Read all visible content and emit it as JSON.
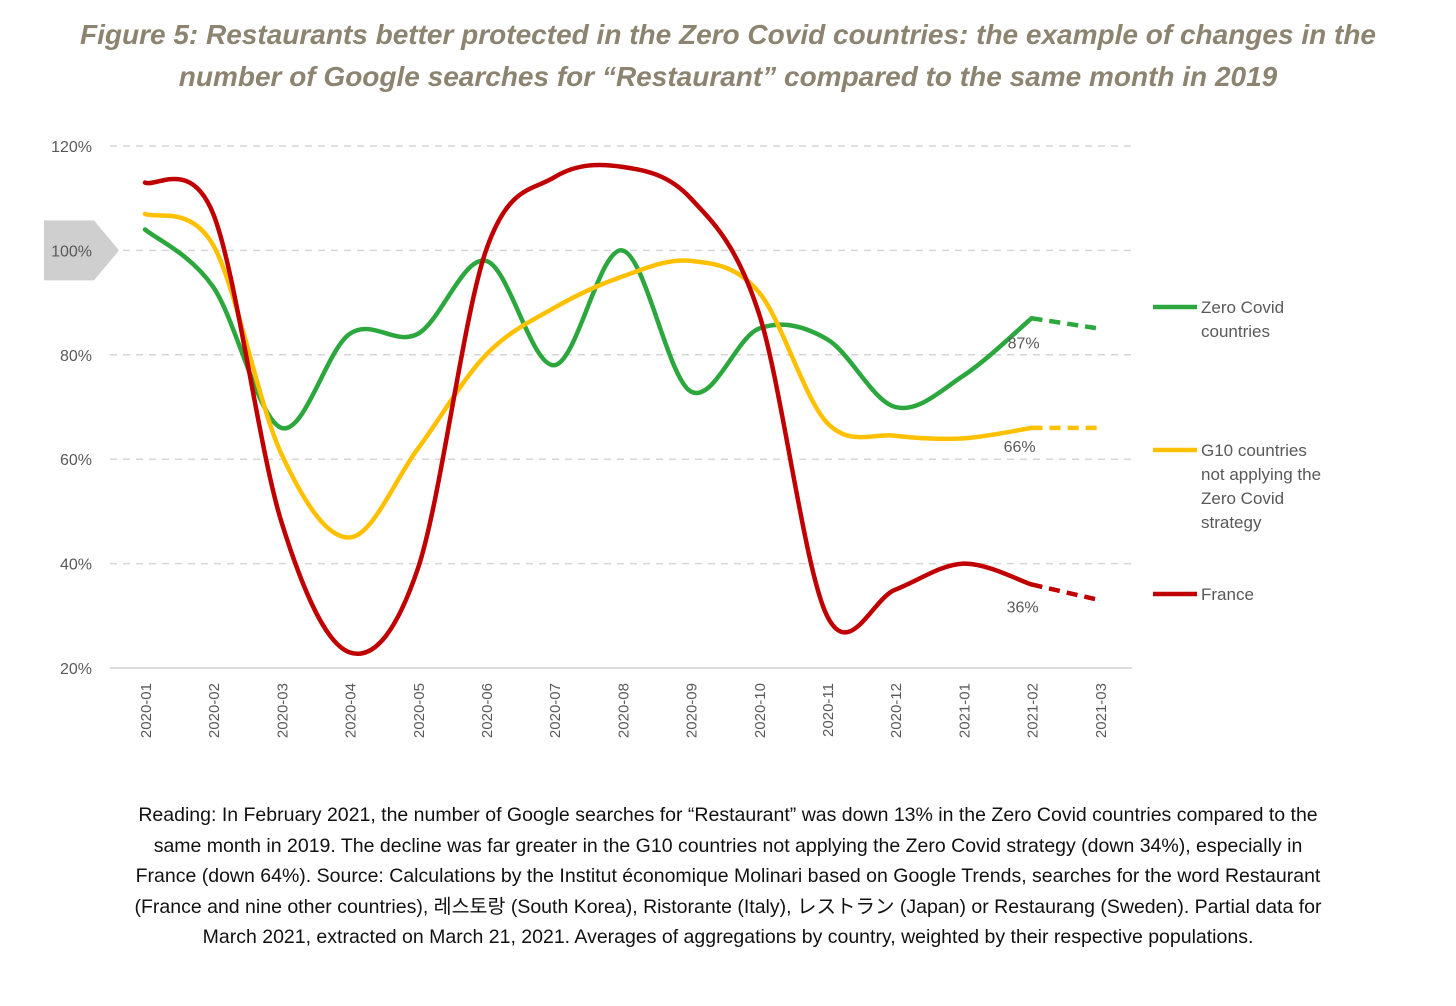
{
  "title": {
    "line1": "Figure 5: Restaurants better protected in the Zero Covid countries: the example of changes in the",
    "line2": "number of Google searches for “Restaurant” compared to the same month in 2019"
  },
  "chart_data": {
    "type": "line",
    "categories": [
      "2020-01",
      "2020-02",
      "2020-03",
      "2020-04",
      "2020-05",
      "2020-06",
      "2020-07",
      "2020-08",
      "2020-09",
      "2020-10",
      "2020-11",
      "2020-12",
      "2021-01",
      "2021-02",
      "2021-03"
    ],
    "y_ticks": [
      "20%",
      "40%",
      "60%",
      "80%",
      "100%",
      "120%"
    ],
    "y_tick_values": [
      20,
      40,
      60,
      80,
      100,
      120
    ],
    "ylim": [
      20,
      120
    ],
    "grid": true,
    "highlight_tick": "100%",
    "legend_position": "right",
    "series": [
      {
        "name": "Zero Covid countries",
        "name_lines": [
          "Zero Covid",
          "countries"
        ],
        "color": "#2ca73e",
        "values": [
          104,
          93,
          66,
          84,
          84,
          98,
          78,
          100,
          73,
          85,
          83,
          70,
          76,
          87,
          85
        ],
        "end_label": "87%",
        "dashed_from_index": 13
      },
      {
        "name": "G10 countries not applying the Zero Covid strategy",
        "name_lines": [
          "G10 countries",
          "not applying the",
          "Zero Covid",
          "strategy"
        ],
        "color": "#ffc000",
        "values": [
          107,
          101,
          61,
          45,
          62,
          80,
          89,
          95,
          98,
          92,
          67,
          64.5,
          64,
          66,
          66
        ],
        "end_label": "66%",
        "dashed_from_index": 13
      },
      {
        "name": "France",
        "name_lines": [
          "France"
        ],
        "color": "#c00000",
        "values": [
          113,
          107,
          48,
          23,
          39,
          100,
          114,
          116,
          110,
          88,
          30,
          35,
          40,
          36,
          33
        ],
        "end_label": "36%",
        "dashed_from_index": 13
      }
    ]
  },
  "note": {
    "line1": "Reading: In February 2021, the number of Google searches for “Restaurant” was down 13% in the Zero Covid countries compared to the",
    "line2": "same month in 2019. The decline was far greater in the G10 countries not applying the Zero Covid strategy (down 34%), especially in",
    "line3": "France (down 64%). Source: Calculations by the Institut économique Molinari based on Google Trends, searches for the word Restaurant",
    "line4": "(France and nine other countries), 레스토랑 (South Korea), Ristorante (Italy), レストラン (Japan) or Restaurang (Sweden). Partial data for",
    "line5": "March 2021, extracted on March 21, 2021. Averages of aggregations by country, weighted by their respective populations."
  }
}
